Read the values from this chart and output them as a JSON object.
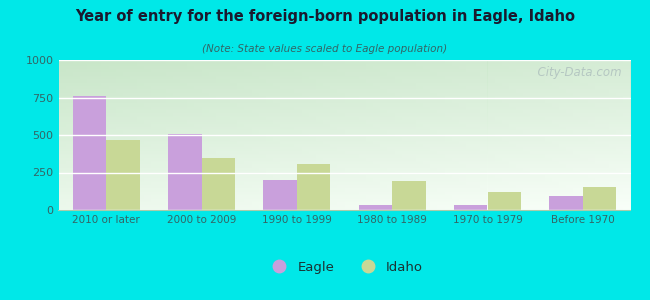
{
  "title": "Year of entry for the foreign-born population in Eagle, Idaho",
  "subtitle": "(Note: State values scaled to Eagle population)",
  "categories": [
    "2010 or later",
    "2000 to 2009",
    "1990 to 1999",
    "1980 to 1989",
    "1970 to 1979",
    "Before 1970"
  ],
  "eagle_values": [
    760,
    505,
    200,
    35,
    35,
    95
  ],
  "idaho_values": [
    465,
    350,
    310,
    195,
    120,
    155
  ],
  "eagle_color": "#c9a0dc",
  "idaho_color": "#c8d896",
  "ylim": [
    0,
    1000
  ],
  "yticks": [
    0,
    250,
    500,
    750,
    1000
  ],
  "bg_color": "#00e8e8",
  "title_color": "#1a1a2e",
  "subtitle_color": "#336666",
  "bar_width": 0.35,
  "watermark": "  City-Data.com",
  "grad_top_color": "#cce8cc",
  "grad_bottom_color": "#f8fff8",
  "grad_right_color": "#e8f5e8"
}
